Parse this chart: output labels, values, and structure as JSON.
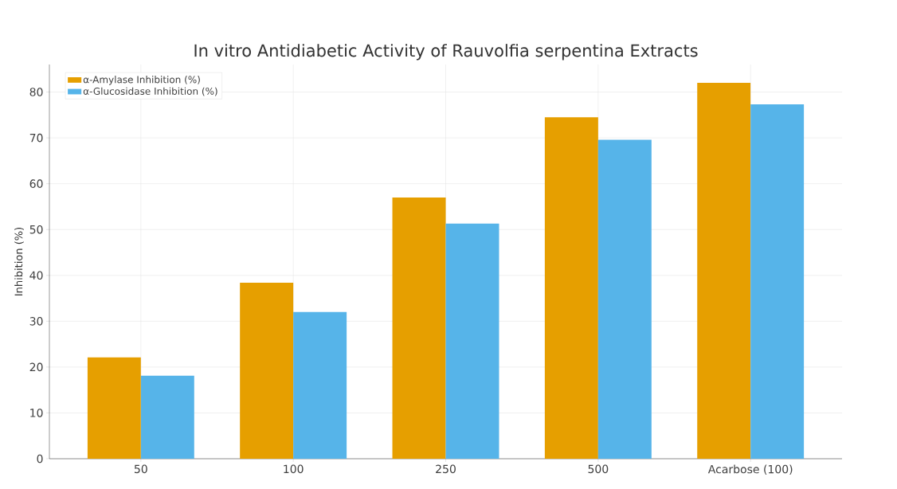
{
  "chart_data": {
    "type": "bar",
    "title": "In vitro Antidiabetic Activity of Rauvolfia serpentina Extracts",
    "ylabel": "Inhibition (%)",
    "categories": [
      "50",
      "100",
      "250",
      "500",
      "Acarbose (100)"
    ],
    "series": [
      {
        "name": "α-Amylase Inhibition (%)",
        "color": "#e69f00",
        "values": [
          22.1,
          38.4,
          57.0,
          74.5,
          82.0
        ]
      },
      {
        "name": "α-Glucosidase Inhibition (%)",
        "color": "#56b4e9",
        "values": [
          18.1,
          32.0,
          51.3,
          69.6,
          77.3
        ]
      }
    ],
    "ylim": [
      0,
      86
    ],
    "yticks": [
      0,
      10,
      20,
      30,
      40,
      50,
      60,
      70,
      80
    ],
    "grid": true,
    "legend": "top left"
  }
}
